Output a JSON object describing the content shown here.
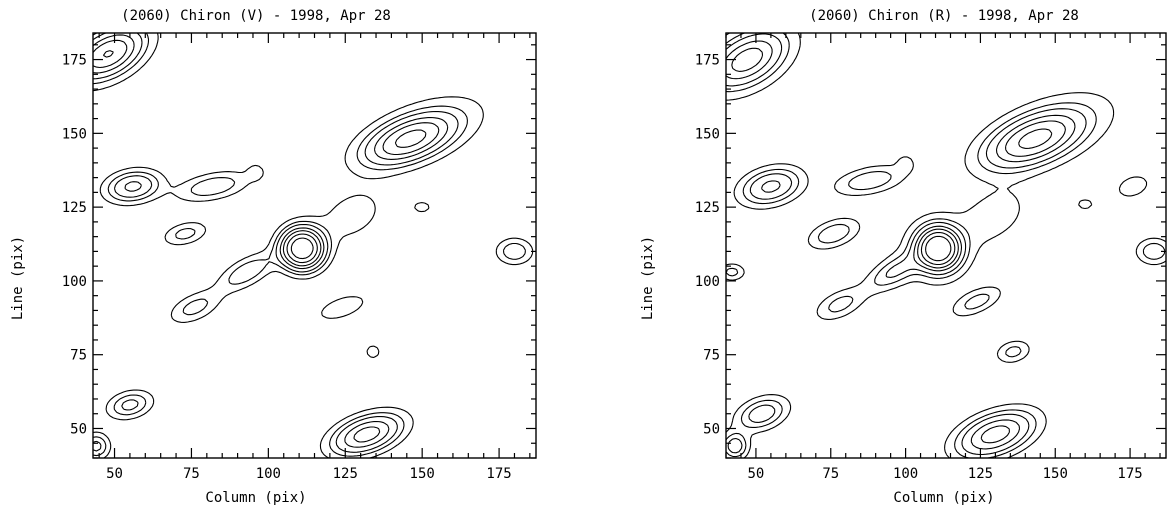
{
  "chart_data": [
    {
      "type": "contour",
      "title": "(2060) Chiron (V)  -  1998, Apr 28",
      "xlabel": "Column (pix)",
      "ylabel": "Line (pix)",
      "xlim": [
        43,
        187
      ],
      "ylim": [
        40,
        184
      ],
      "xticks": [
        50,
        75,
        100,
        125,
        150,
        175
      ],
      "yticks": [
        50,
        75,
        100,
        125,
        150,
        175
      ],
      "features": [
        {
          "x": 111,
          "y": 111,
          "sx": 4.5,
          "sy": 4.5,
          "angle": 0,
          "peak": 14
        },
        {
          "x": 146,
          "y": 148,
          "sx": 10,
          "sy": 4.5,
          "angle": 22,
          "peak": 8
        },
        {
          "x": 48,
          "y": 177,
          "sx": 8,
          "sy": 4.5,
          "angle": 30,
          "peak": 7
        },
        {
          "x": 56,
          "y": 132,
          "sx": 6,
          "sy": 3.5,
          "angle": 10,
          "peak": 5
        },
        {
          "x": 132,
          "y": 48,
          "sx": 8,
          "sy": 4,
          "angle": 20,
          "peak": 7
        },
        {
          "x": 55,
          "y": 58,
          "sx": 5,
          "sy": 3,
          "angle": 15,
          "peak": 3.5
        },
        {
          "x": 44,
          "y": 44,
          "sx": 3,
          "sy": 3,
          "angle": 0,
          "peak": 3.5
        },
        {
          "x": 82,
          "y": 132,
          "sx": 8,
          "sy": 3,
          "angle": 12,
          "peak": 3
        },
        {
          "x": 73,
          "y": 116,
          "sx": 5,
          "sy": 2.5,
          "angle": 15,
          "peak": 2.5
        },
        {
          "x": 93,
          "y": 103,
          "sx": 7,
          "sy": 3,
          "angle": 30,
          "peak": 3
        },
        {
          "x": 76,
          "y": 91,
          "sx": 6,
          "sy": 3,
          "angle": 25,
          "peak": 2.5
        },
        {
          "x": 124,
          "y": 91,
          "sx": 6,
          "sy": 2.5,
          "angle": 20,
          "peak": 2
        },
        {
          "x": 180,
          "y": 110,
          "sx": 4,
          "sy": 3,
          "angle": 0,
          "peak": 3
        },
        {
          "x": 127,
          "y": 122,
          "sx": 9,
          "sy": 6,
          "angle": 30,
          "peak": 1.5
        },
        {
          "x": 152,
          "y": 152,
          "sx": 18,
          "sy": 8,
          "angle": 22,
          "peak": 1.2
        },
        {
          "x": 48,
          "y": 176,
          "sx": 12,
          "sy": 7,
          "angle": 30,
          "peak": 1.2
        },
        {
          "x": 134,
          "y": 76,
          "sx": 2,
          "sy": 2,
          "angle": 0,
          "peak": 1.6
        },
        {
          "x": 96,
          "y": 137,
          "sx": 2,
          "sy": 2,
          "angle": 0,
          "peak": 1.4
        },
        {
          "x": 150,
          "y": 125,
          "sx": 3,
          "sy": 2,
          "angle": 0,
          "peak": 1.3
        }
      ]
    },
    {
      "type": "contour",
      "title": "(2060) Chiron (R)  -  1998, Apr 28",
      "xlabel": "Column (pix)",
      "ylabel": "Line (pix)",
      "xlim": [
        40,
        187
      ],
      "ylim": [
        40,
        184
      ],
      "xticks": [
        50,
        75,
        100,
        125,
        150,
        175
      ],
      "yticks": [
        50,
        75,
        100,
        125,
        150,
        175
      ],
      "features": [
        {
          "x": 111,
          "y": 111,
          "sx": 4.5,
          "sy": 4.5,
          "angle": 0,
          "peak": 14
        },
        {
          "x": 143,
          "y": 148,
          "sx": 11,
          "sy": 5,
          "angle": 22,
          "peak": 8
        },
        {
          "x": 47,
          "y": 175,
          "sx": 9,
          "sy": 5,
          "angle": 30,
          "peak": 6
        },
        {
          "x": 55,
          "y": 132,
          "sx": 7,
          "sy": 4,
          "angle": 15,
          "peak": 5
        },
        {
          "x": 130,
          "y": 48,
          "sx": 9,
          "sy": 4.5,
          "angle": 20,
          "peak": 7
        },
        {
          "x": 52,
          "y": 55,
          "sx": 6,
          "sy": 3.5,
          "angle": 20,
          "peak": 4
        },
        {
          "x": 43,
          "y": 44,
          "sx": 3,
          "sy": 3,
          "angle": 0,
          "peak": 4
        },
        {
          "x": 88,
          "y": 134,
          "sx": 8,
          "sy": 3,
          "angle": 12,
          "peak": 3
        },
        {
          "x": 76,
          "y": 116,
          "sx": 6,
          "sy": 3,
          "angle": 20,
          "peak": 3
        },
        {
          "x": 96,
          "y": 103,
          "sx": 7,
          "sy": 3,
          "angle": 30,
          "peak": 3
        },
        {
          "x": 78,
          "y": 92,
          "sx": 6,
          "sy": 3,
          "angle": 25,
          "peak": 2.5
        },
        {
          "x": 124,
          "y": 93,
          "sx": 6,
          "sy": 2.5,
          "angle": 25,
          "peak": 2.5
        },
        {
          "x": 183,
          "y": 110,
          "sx": 4,
          "sy": 3,
          "angle": 0,
          "peak": 3
        },
        {
          "x": 42,
          "y": 103,
          "sx": 3,
          "sy": 2,
          "angle": 0,
          "peak": 2.5
        },
        {
          "x": 130,
          "y": 122,
          "sx": 9,
          "sy": 6,
          "angle": 30,
          "peak": 1.5
        },
        {
          "x": 150,
          "y": 152,
          "sx": 20,
          "sy": 9,
          "angle": 22,
          "peak": 1.2
        },
        {
          "x": 48,
          "y": 174,
          "sx": 13,
          "sy": 8,
          "angle": 30,
          "peak": 1.2
        },
        {
          "x": 110,
          "y": 110,
          "sx": 10,
          "sy": 10,
          "angle": 0,
          "peak": 1.3
        },
        {
          "x": 136,
          "y": 76,
          "sx": 4,
          "sy": 2.5,
          "angle": 15,
          "peak": 2.5
        },
        {
          "x": 176,
          "y": 132,
          "sx": 4,
          "sy": 2.5,
          "angle": 20,
          "peak": 2
        },
        {
          "x": 100,
          "y": 140,
          "sx": 2,
          "sy": 2,
          "angle": 0,
          "peak": 1.4
        },
        {
          "x": 160,
          "y": 126,
          "sx": 3,
          "sy": 2,
          "angle": 0,
          "peak": 1.3
        }
      ]
    }
  ],
  "contour_levels": [
    1,
    2,
    3,
    4.5,
    6,
    8,
    10.5
  ]
}
